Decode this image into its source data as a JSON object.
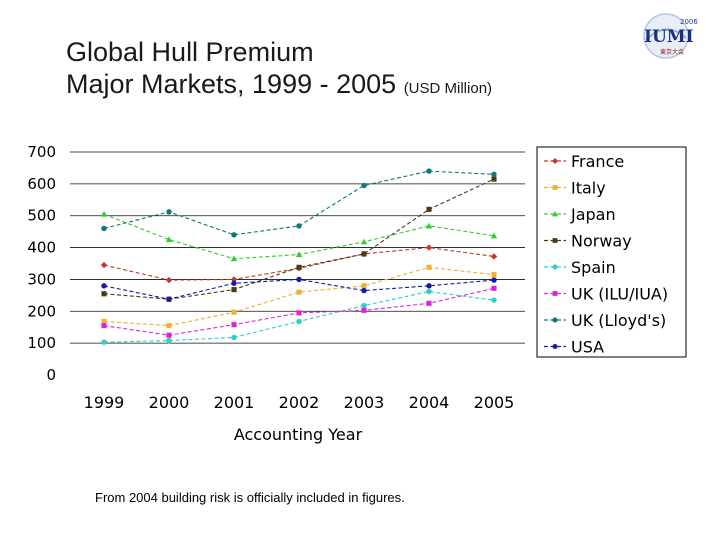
{
  "slide": {
    "title_line1": "Global Hull Premium",
    "title_line2": "Major Markets, 1999 - 2005",
    "title_unit": "(USD Million)",
    "footnote": "From 2004 building risk is officially included in figures.",
    "logo_text_top": "2006",
    "logo_text_main": "IUMI",
    "logo_text_sub": "東京大会"
  },
  "chart_data": {
    "type": "line",
    "title": "Global Hull Premium Major Markets, 1999 - 2005 (USD Million)",
    "xlabel": "Accounting Year",
    "ylabel": "",
    "categories": [
      "1999",
      "2000",
      "2001",
      "2002",
      "2003",
      "2004",
      "2005"
    ],
    "ylim": [
      0,
      700
    ],
    "yticks": [
      "0",
      "100",
      "200",
      "300",
      "400",
      "500",
      "600",
      "700"
    ],
    "grid": true,
    "legend_position": "right",
    "series": [
      {
        "name": "France",
        "color": "#c0392b",
        "marker": "diamond",
        "values": [
          345,
          298,
          300,
          335,
          380,
          400,
          372
        ]
      },
      {
        "name": "Italy",
        "color": "#f0b030",
        "marker": "square",
        "values": [
          168,
          155,
          197,
          260,
          280,
          338,
          315
        ]
      },
      {
        "name": "Japan",
        "color": "#33cc33",
        "marker": "triangle",
        "values": [
          505,
          425,
          365,
          378,
          418,
          468,
          437
        ]
      },
      {
        "name": "Norway",
        "color": "#4a3b12",
        "marker": "square",
        "values": [
          255,
          238,
          268,
          338,
          380,
          520,
          615
        ]
      },
      {
        "name": "Spain",
        "color": "#33cccc",
        "marker": "circle",
        "values": [
          103,
          108,
          118,
          168,
          218,
          262,
          235
        ]
      },
      {
        "name": "UK (ILU/IUA)",
        "color": "#dd22dd",
        "marker": "square",
        "values": [
          155,
          125,
          158,
          195,
          203,
          225,
          272
        ]
      },
      {
        "name": "UK (Lloyd's)",
        "color": "#117777",
        "marker": "circle",
        "values": [
          460,
          512,
          440,
          468,
          595,
          640,
          630
        ]
      },
      {
        "name": "USA",
        "color": "#1a1aaa",
        "marker": "circle",
        "values": [
          280,
          238,
          288,
          300,
          265,
          280,
          298
        ]
      }
    ]
  }
}
